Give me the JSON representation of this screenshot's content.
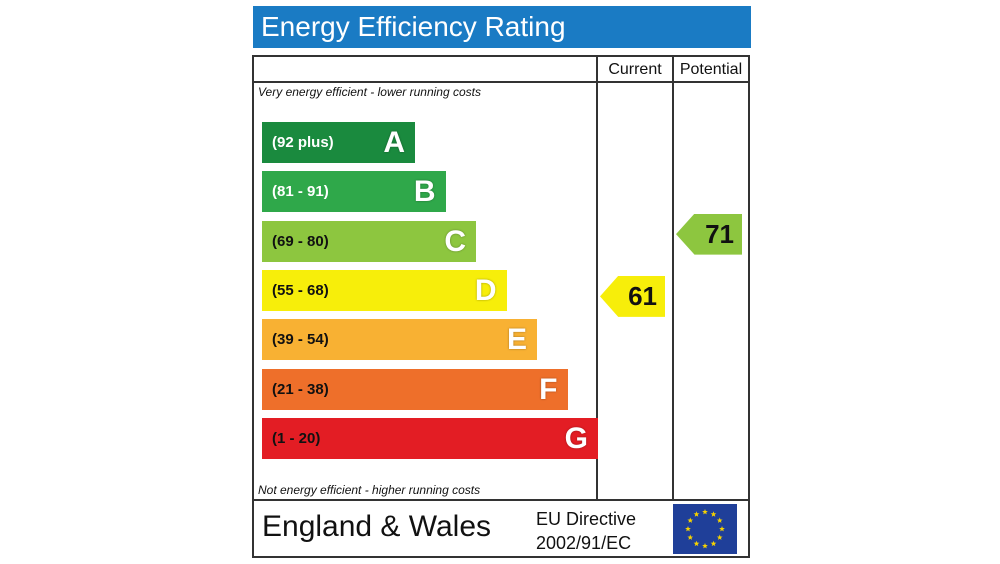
{
  "title": "Energy Efficiency Rating",
  "columns": {
    "current": "Current",
    "potential": "Potential"
  },
  "notes": {
    "top": "Very energy efficient - lower running costs",
    "bottom": "Not energy efficient - higher running costs"
  },
  "footer": {
    "country": "England & Wales",
    "directive_line1": "EU Directive",
    "directive_line2": "2002/91/EC"
  },
  "chart_data": {
    "type": "table",
    "title": "Energy Efficiency Rating",
    "bands": [
      {
        "letter": "A",
        "range": "(92 plus)",
        "color": "#1a8a3e",
        "range_color": "#ffffff"
      },
      {
        "letter": "B",
        "range": "(81 - 91)",
        "color": "#2fa84a",
        "range_color": "#ffffff"
      },
      {
        "letter": "C",
        "range": "(69 - 80)",
        "color": "#8dc63f",
        "range_color": "#111111"
      },
      {
        "letter": "D",
        "range": "(55 - 68)",
        "color": "#f7ee0a",
        "range_color": "#111111"
      },
      {
        "letter": "E",
        "range": "(39 - 54)",
        "color": "#f8b133",
        "range_color": "#111111"
      },
      {
        "letter": "F",
        "range": "(21 - 38)",
        "color": "#ee6f2a",
        "range_color": "#111111"
      },
      {
        "letter": "G",
        "range": "(1 - 20)",
        "color": "#e31d24",
        "range_color": "#111111"
      }
    ],
    "current": {
      "value": "61",
      "band": "D",
      "color": "#f7ee0a"
    },
    "potential": {
      "value": "71",
      "band": "C",
      "color": "#8dc63f"
    }
  }
}
